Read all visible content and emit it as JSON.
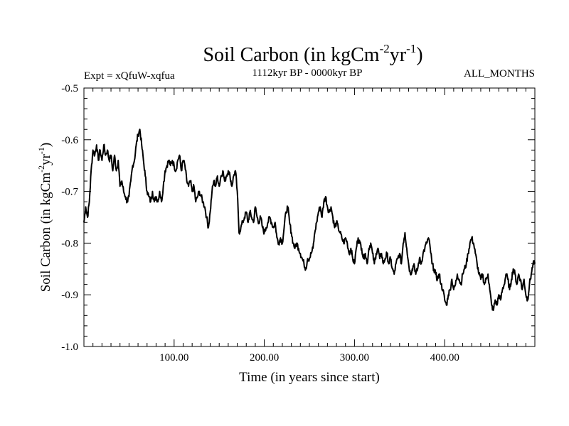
{
  "chart_data": {
    "type": "line",
    "title": {
      "main": "Soil Carbon (in kgCm",
      "sup1": "-2",
      "mid": "yr",
      "sup2": "-1",
      "end": ")"
    },
    "subtitle_left": "Expt = xQfuW-xqfua",
    "subtitle_center": "1112kyr BP - 0000kyr BP",
    "subtitle_right": "ALL_MONTHS",
    "xlabel": "Time (in years since start)",
    "ylabel": {
      "main": "Soil Carbon (in kgCm",
      "sup1": "-2",
      "mid": "yr",
      "sup2": "-1",
      "end": ")"
    },
    "xlim": [
      0,
      500
    ],
    "ylim": [
      -1.0,
      -0.5
    ],
    "x_ticks": [
      {
        "value": 100,
        "label": "100.00"
      },
      {
        "value": 200,
        "label": "200.00"
      },
      {
        "value": 300,
        "label": "300.00"
      },
      {
        "value": 400,
        "label": "400.00"
      }
    ],
    "y_ticks": [
      {
        "value": -0.5,
        "label": "-0.5"
      },
      {
        "value": -0.6,
        "label": "-0.6"
      },
      {
        "value": -0.7,
        "label": "-0.7"
      },
      {
        "value": -0.8,
        "label": "-0.8"
      },
      {
        "value": -0.9,
        "label": "-0.9"
      },
      {
        "value": -1.0,
        "label": "-1.0"
      }
    ],
    "line_color": "#000000",
    "series": [
      {
        "name": "Soil Carbon",
        "points": [
          [
            0,
            -0.76
          ],
          [
            2,
            -0.73
          ],
          [
            4,
            -0.75
          ],
          [
            6,
            -0.72
          ],
          [
            8,
            -0.66
          ],
          [
            10,
            -0.62
          ],
          [
            12,
            -0.63
          ],
          [
            14,
            -0.61
          ],
          [
            16,
            -0.64
          ],
          [
            18,
            -0.62
          ],
          [
            20,
            -0.64
          ],
          [
            22,
            -0.61
          ],
          [
            24,
            -0.63
          ],
          [
            26,
            -0.62
          ],
          [
            28,
            -0.64
          ],
          [
            30,
            -0.63
          ],
          [
            32,
            -0.66
          ],
          [
            34,
            -0.63
          ],
          [
            36,
            -0.66
          ],
          [
            38,
            -0.64
          ],
          [
            40,
            -0.69
          ],
          [
            42,
            -0.68
          ],
          [
            44,
            -0.7
          ],
          [
            46,
            -0.71
          ],
          [
            48,
            -0.72
          ],
          [
            50,
            -0.71
          ],
          [
            52,
            -0.68
          ],
          [
            54,
            -0.65
          ],
          [
            56,
            -0.64
          ],
          [
            58,
            -0.61
          ],
          [
            60,
            -0.59
          ],
          [
            62,
            -0.58
          ],
          [
            64,
            -0.61
          ],
          [
            66,
            -0.64
          ],
          [
            68,
            -0.67
          ],
          [
            70,
            -0.7
          ],
          [
            72,
            -0.71
          ],
          [
            74,
            -0.72
          ],
          [
            76,
            -0.7
          ],
          [
            78,
            -0.72
          ],
          [
            80,
            -0.71
          ],
          [
            82,
            -0.72
          ],
          [
            84,
            -0.7
          ],
          [
            86,
            -0.72
          ],
          [
            88,
            -0.69
          ],
          [
            90,
            -0.66
          ],
          [
            92,
            -0.65
          ],
          [
            94,
            -0.64
          ],
          [
            96,
            -0.65
          ],
          [
            98,
            -0.64
          ],
          [
            100,
            -0.65
          ],
          [
            102,
            -0.66
          ],
          [
            104,
            -0.64
          ],
          [
            106,
            -0.63
          ],
          [
            108,
            -0.66
          ],
          [
            110,
            -0.64
          ],
          [
            112,
            -0.65
          ],
          [
            114,
            -0.68
          ],
          [
            116,
            -0.69
          ],
          [
            118,
            -0.68
          ],
          [
            120,
            -0.7
          ],
          [
            122,
            -0.69
          ],
          [
            124,
            -0.72
          ],
          [
            126,
            -0.71
          ],
          [
            128,
            -0.7
          ],
          [
            130,
            -0.71
          ],
          [
            132,
            -0.72
          ],
          [
            134,
            -0.73
          ],
          [
            136,
            -0.75
          ],
          [
            138,
            -0.77
          ],
          [
            140,
            -0.74
          ],
          [
            142,
            -0.7
          ],
          [
            144,
            -0.68
          ],
          [
            146,
            -0.69
          ],
          [
            148,
            -0.67
          ],
          [
            150,
            -0.69
          ],
          [
            152,
            -0.67
          ],
          [
            154,
            -0.66
          ],
          [
            156,
            -0.68
          ],
          [
            158,
            -0.67
          ],
          [
            160,
            -0.66
          ],
          [
            162,
            -0.67
          ],
          [
            164,
            -0.69
          ],
          [
            166,
            -0.67
          ],
          [
            168,
            -0.66
          ],
          [
            170,
            -0.7
          ],
          [
            172,
            -0.78
          ],
          [
            174,
            -0.77
          ],
          [
            176,
            -0.76
          ],
          [
            178,
            -0.75
          ],
          [
            180,
            -0.74
          ],
          [
            182,
            -0.76
          ],
          [
            184,
            -0.74
          ],
          [
            186,
            -0.75
          ],
          [
            188,
            -0.76
          ],
          [
            190,
            -0.73
          ],
          [
            192,
            -0.75
          ],
          [
            194,
            -0.76
          ],
          [
            196,
            -0.75
          ],
          [
            198,
            -0.77
          ],
          [
            200,
            -0.78
          ],
          [
            202,
            -0.77
          ],
          [
            204,
            -0.76
          ],
          [
            206,
            -0.75
          ],
          [
            208,
            -0.76
          ],
          [
            210,
            -0.77
          ],
          [
            212,
            -0.76
          ],
          [
            214,
            -0.79
          ],
          [
            216,
            -0.8
          ],
          [
            218,
            -0.79
          ],
          [
            220,
            -0.8
          ],
          [
            222,
            -0.77
          ],
          [
            224,
            -0.74
          ],
          [
            226,
            -0.73
          ],
          [
            228,
            -0.76
          ],
          [
            230,
            -0.78
          ],
          [
            232,
            -0.8
          ],
          [
            234,
            -0.81
          ],
          [
            236,
            -0.8
          ],
          [
            238,
            -0.81
          ],
          [
            240,
            -0.82
          ],
          [
            242,
            -0.83
          ],
          [
            244,
            -0.84
          ],
          [
            246,
            -0.85
          ],
          [
            248,
            -0.83
          ],
          [
            250,
            -0.83
          ],
          [
            252,
            -0.82
          ],
          [
            254,
            -0.81
          ],
          [
            256,
            -0.78
          ],
          [
            258,
            -0.76
          ],
          [
            260,
            -0.74
          ],
          [
            262,
            -0.73
          ],
          [
            264,
            -0.75
          ],
          [
            266,
            -0.72
          ],
          [
            268,
            -0.71
          ],
          [
            270,
            -0.73
          ],
          [
            272,
            -0.74
          ],
          [
            274,
            -0.73
          ],
          [
            276,
            -0.75
          ],
          [
            278,
            -0.77
          ],
          [
            280,
            -0.76
          ],
          [
            282,
            -0.77
          ],
          [
            284,
            -0.78
          ],
          [
            286,
            -0.79
          ],
          [
            288,
            -0.8
          ],
          [
            290,
            -0.79
          ],
          [
            292,
            -0.8
          ],
          [
            294,
            -0.82
          ],
          [
            296,
            -0.81
          ],
          [
            298,
            -0.83
          ],
          [
            300,
            -0.84
          ],
          [
            302,
            -0.81
          ],
          [
            304,
            -0.79
          ],
          [
            306,
            -0.8
          ],
          [
            308,
            -0.81
          ],
          [
            310,
            -0.83
          ],
          [
            312,
            -0.82
          ],
          [
            314,
            -0.84
          ],
          [
            316,
            -0.81
          ],
          [
            318,
            -0.8
          ],
          [
            320,
            -0.82
          ],
          [
            322,
            -0.84
          ],
          [
            324,
            -0.82
          ],
          [
            326,
            -0.81
          ],
          [
            328,
            -0.83
          ],
          [
            330,
            -0.82
          ],
          [
            332,
            -0.84
          ],
          [
            334,
            -0.83
          ],
          [
            336,
            -0.82
          ],
          [
            338,
            -0.84
          ],
          [
            340,
            -0.83
          ],
          [
            342,
            -0.85
          ],
          [
            344,
            -0.86
          ],
          [
            346,
            -0.84
          ],
          [
            348,
            -0.83
          ],
          [
            350,
            -0.82
          ],
          [
            352,
            -0.84
          ],
          [
            354,
            -0.8
          ],
          [
            356,
            -0.78
          ],
          [
            358,
            -0.81
          ],
          [
            360,
            -0.84
          ],
          [
            362,
            -0.86
          ],
          [
            364,
            -0.85
          ],
          [
            366,
            -0.84
          ],
          [
            368,
            -0.86
          ],
          [
            370,
            -0.85
          ],
          [
            372,
            -0.83
          ],
          [
            374,
            -0.84
          ],
          [
            376,
            -0.82
          ],
          [
            378,
            -0.81
          ],
          [
            380,
            -0.8
          ],
          [
            382,
            -0.79
          ],
          [
            384,
            -0.81
          ],
          [
            386,
            -0.84
          ],
          [
            388,
            -0.85
          ],
          [
            390,
            -0.86
          ],
          [
            392,
            -0.87
          ],
          [
            394,
            -0.86
          ],
          [
            396,
            -0.88
          ],
          [
            398,
            -0.89
          ],
          [
            400,
            -0.91
          ],
          [
            402,
            -0.92
          ],
          [
            404,
            -0.9
          ],
          [
            406,
            -0.89
          ],
          [
            408,
            -0.87
          ],
          [
            410,
            -0.89
          ],
          [
            412,
            -0.88
          ],
          [
            414,
            -0.86
          ],
          [
            416,
            -0.87
          ],
          [
            418,
            -0.88
          ],
          [
            420,
            -0.86
          ],
          [
            422,
            -0.85
          ],
          [
            424,
            -0.84
          ],
          [
            426,
            -0.82
          ],
          [
            428,
            -0.8
          ],
          [
            430,
            -0.79
          ],
          [
            432,
            -0.8
          ],
          [
            434,
            -0.82
          ],
          [
            436,
            -0.84
          ],
          [
            438,
            -0.86
          ],
          [
            440,
            -0.87
          ],
          [
            442,
            -0.86
          ],
          [
            444,
            -0.88
          ],
          [
            446,
            -0.87
          ],
          [
            448,
            -0.86
          ],
          [
            450,
            -0.89
          ],
          [
            452,
            -0.92
          ],
          [
            454,
            -0.93
          ],
          [
            456,
            -0.91
          ],
          [
            458,
            -0.92
          ],
          [
            460,
            -0.9
          ],
          [
            462,
            -0.91
          ],
          [
            464,
            -0.89
          ],
          [
            466,
            -0.88
          ],
          [
            468,
            -0.86
          ],
          [
            470,
            -0.87
          ],
          [
            472,
            -0.89
          ],
          [
            474,
            -0.87
          ],
          [
            476,
            -0.85
          ],
          [
            478,
            -0.86
          ],
          [
            480,
            -0.88
          ],
          [
            482,
            -0.86
          ],
          [
            484,
            -0.87
          ],
          [
            486,
            -0.89
          ],
          [
            488,
            -0.87
          ],
          [
            490,
            -0.9
          ],
          [
            492,
            -0.91
          ],
          [
            494,
            -0.88
          ],
          [
            496,
            -0.86
          ],
          [
            498,
            -0.84
          ],
          [
            500,
            -0.84
          ]
        ]
      }
    ]
  }
}
